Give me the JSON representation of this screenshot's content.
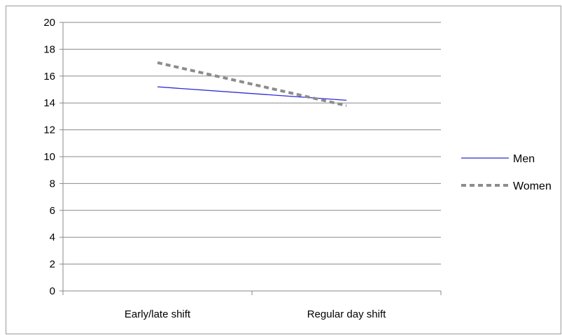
{
  "chart_data": {
    "type": "line",
    "title": "",
    "xlabel": "",
    "ylabel": "",
    "categories": [
      "Early/late shift",
      "Regular day shift"
    ],
    "ylim": [
      0,
      20
    ],
    "yticks": [
      0,
      2,
      4,
      6,
      8,
      10,
      12,
      14,
      16,
      18,
      20
    ],
    "grid": true,
    "legend_position": "right",
    "series": [
      {
        "name": "Men",
        "values": [
          15.2,
          14.2
        ],
        "color": "#2b2bd6",
        "style": "solid"
      },
      {
        "name": "Women",
        "values": [
          17.0,
          13.8
        ],
        "color": "#8c8c8c",
        "style": "dashed"
      }
    ]
  }
}
